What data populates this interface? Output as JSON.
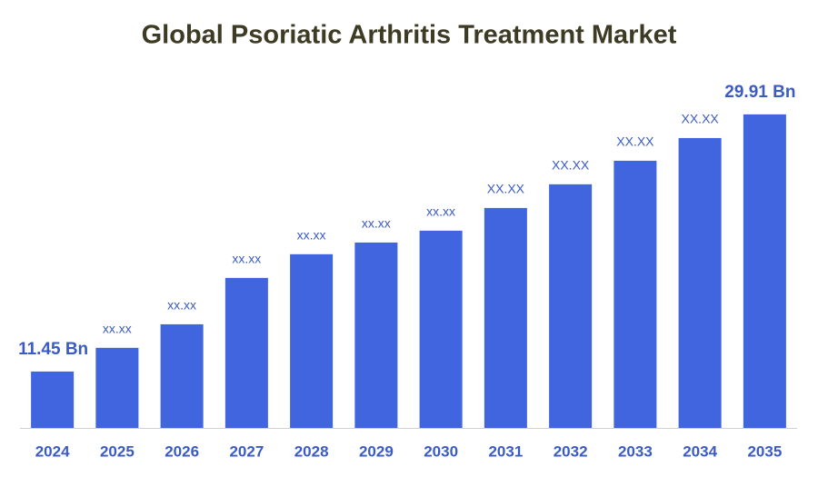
{
  "chart_data": {
    "type": "bar",
    "title": "Global Psoriatic Arthritis Treatment Market",
    "categories": [
      "2024",
      "2025",
      "2026",
      "2027",
      "2028",
      "2029",
      "2030",
      "2031",
      "2032",
      "2033",
      "2034",
      "2035"
    ],
    "values": [
      11.45,
      13.15,
      14.84,
      18.17,
      19.87,
      20.71,
      21.56,
      23.19,
      24.89,
      26.58,
      28.21,
      29.91
    ],
    "value_labels": [
      "11.45 Bn",
      "xx.xx",
      "xx.xx",
      "xx.xx",
      "xx.xx",
      "xx.xx",
      "xx.xx",
      "XX.XX",
      "XX.XX",
      "XX.XX",
      "XX.XX",
      "29.91 Bn"
    ],
    "color": "#4065de",
    "ylim": [
      7.4,
      33
    ]
  }
}
